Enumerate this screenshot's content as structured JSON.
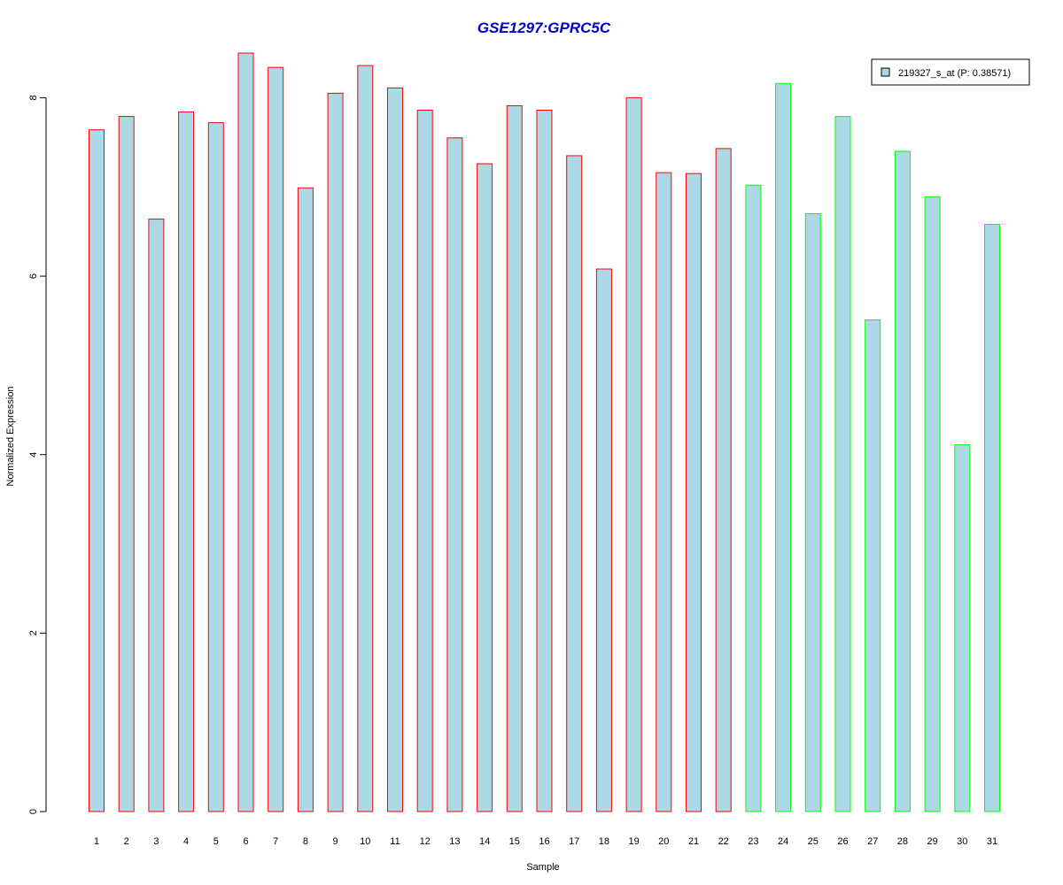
{
  "chart_data": {
    "type": "bar",
    "title": "GSE1297:GPRC5C",
    "xlabel": "Sample",
    "ylabel": "Normalized Expression",
    "ylim": [
      0,
      8.5
    ],
    "yticks": [
      "0",
      "2",
      "4",
      "6",
      "8"
    ],
    "categories": [
      "1",
      "2",
      "3",
      "4",
      "5",
      "6",
      "7",
      "8",
      "9",
      "10",
      "11",
      "12",
      "13",
      "14",
      "15",
      "16",
      "17",
      "18",
      "19",
      "20",
      "21",
      "22",
      "23",
      "24",
      "25",
      "26",
      "27",
      "28",
      "29",
      "30",
      "31"
    ],
    "values": [
      7.64,
      7.79,
      6.64,
      7.84,
      7.72,
      8.5,
      8.34,
      6.99,
      8.05,
      8.36,
      8.11,
      7.86,
      7.55,
      7.26,
      7.91,
      7.86,
      7.35,
      6.08,
      8.0,
      7.16,
      7.15,
      7.43,
      7.02,
      8.16,
      6.7,
      7.79,
      5.51,
      7.4,
      6.89,
      4.11,
      6.58
    ],
    "groups": [
      "red",
      "red",
      "red",
      "red",
      "red",
      "red",
      "red",
      "red",
      "red",
      "red",
      "red",
      "red",
      "red",
      "red",
      "red",
      "red",
      "red",
      "red",
      "red",
      "red",
      "red",
      "red",
      "green",
      "green",
      "green",
      "green",
      "green",
      "green",
      "green",
      "green",
      "green"
    ],
    "legend": {
      "label": "219327_s_at (P: 0.38571)",
      "placement": "top-right"
    },
    "grid": false
  },
  "colors": {
    "bar_fill": "#add8e6",
    "border_red": "#ff0000",
    "border_green": "#00ff00",
    "title": "#0000cd",
    "axis": "#000000"
  }
}
